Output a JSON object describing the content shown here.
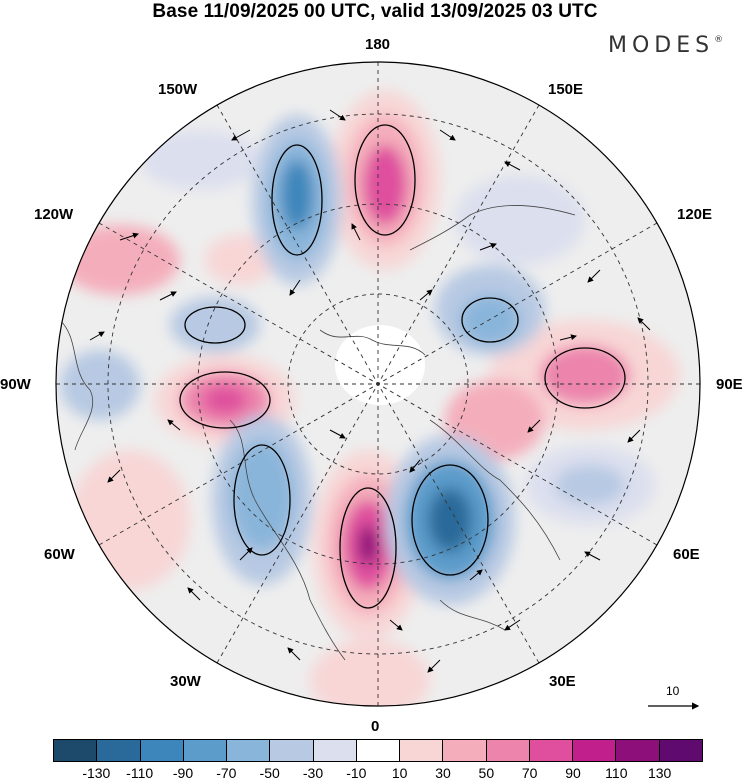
{
  "title": "Base 11/09/2025 00 UTC, valid 13/09/2025 03 UTC",
  "brand": "MODES",
  "brand_mark": "®",
  "longitude_labels": {
    "top": "180",
    "bottom": "0",
    "left": "90W",
    "right": "90E",
    "top_left": "150W",
    "top_right": "150E",
    "upper_left": "120W",
    "upper_right": "120E",
    "lower_left": "60W",
    "lower_right": "60E",
    "bottom_left": "30W",
    "bottom_right": "30E"
  },
  "wind_scale_label": "10",
  "colorbar": {
    "colors": [
      "#1d4a6b",
      "#2a6a9a",
      "#3c86bb",
      "#5c9ccb",
      "#8ab5da",
      "#b7c9e3",
      "#dcdfee",
      "#ffffff",
      "#f8d6d6",
      "#f4aebb",
      "#ec84ac",
      "#df4f9e",
      "#c11f8c",
      "#8d0f79",
      "#5e0a6e"
    ],
    "tick_labels": [
      "-130",
      "-110",
      "-90",
      "-70",
      "-50",
      "-30",
      "-10",
      "10",
      "30",
      "50",
      "70",
      "90",
      "110",
      "130"
    ]
  }
}
